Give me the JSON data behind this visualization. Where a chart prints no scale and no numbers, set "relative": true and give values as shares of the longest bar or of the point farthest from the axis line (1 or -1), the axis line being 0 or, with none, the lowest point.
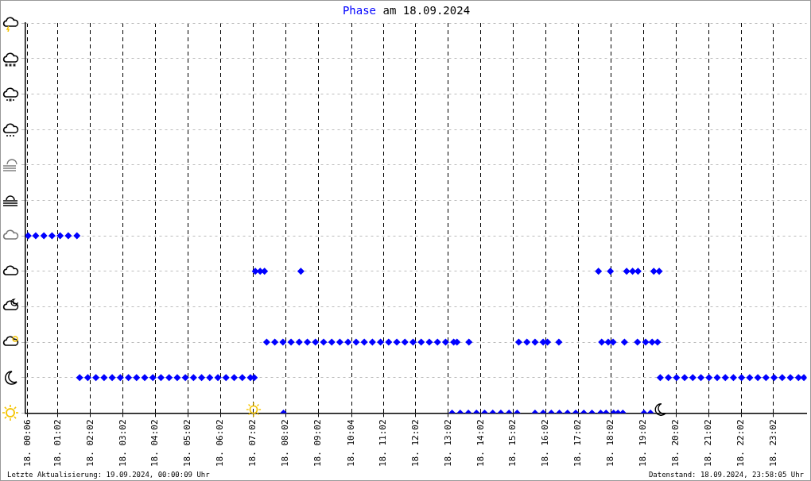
{
  "chart_data": {
    "type": "scatter",
    "title": "Phase am 18.09.2024",
    "relative": true,
    "marker": "diamond",
    "grid": true,
    "xlim": [
      "2024-09-18T00:02",
      "2024-09-19T00:03"
    ],
    "xticks": [
      {
        "value": "2024-09-18T00:06",
        "label": "18. 00:06"
      },
      {
        "value": "2024-09-18T01:02",
        "label": "18. 01:02"
      },
      {
        "value": "2024-09-18T02:02",
        "label": "18. 02:02"
      },
      {
        "value": "2024-09-18T03:02",
        "label": "18. 03:02"
      },
      {
        "value": "2024-09-18T04:02",
        "label": "18. 04:02"
      },
      {
        "value": "2024-09-18T05:02",
        "label": "18. 05:02"
      },
      {
        "value": "2024-09-18T06:02",
        "label": "18. 06:02"
      },
      {
        "value": "2024-09-18T07:02",
        "label": "18. 07:02"
      },
      {
        "value": "2024-09-18T08:02",
        "label": "18. 08:02"
      },
      {
        "value": "2024-09-18T09:02",
        "label": "18. 09:02"
      },
      {
        "value": "2024-09-18T10:04",
        "label": "18. 10:04"
      },
      {
        "value": "2024-09-18T11:02",
        "label": "18. 11:02"
      },
      {
        "value": "2024-09-18T12:02",
        "label": "18. 12:02"
      },
      {
        "value": "2024-09-18T13:02",
        "label": "18. 13:02"
      },
      {
        "value": "2024-09-18T14:02",
        "label": "18. 14:02"
      },
      {
        "value": "2024-09-18T15:02",
        "label": "18. 15:02"
      },
      {
        "value": "2024-09-18T16:02",
        "label": "18. 16:02"
      },
      {
        "value": "2024-09-18T17:02",
        "label": "18. 17:02"
      },
      {
        "value": "2024-09-18T18:02",
        "label": "18. 18:02"
      },
      {
        "value": "2024-09-18T19:02",
        "label": "18. 19:02"
      },
      {
        "value": "2024-09-18T20:02",
        "label": "18. 20:02"
      },
      {
        "value": "2024-09-18T21:02",
        "label": "18. 21:02"
      },
      {
        "value": "2024-09-18T22:02",
        "label": "18. 22:02"
      },
      {
        "value": "2024-09-18T23:02",
        "label": "18. 23:02"
      }
    ],
    "series": [
      {
        "color": "#0000ff",
        "x": [
          "2024-09-18T00:07",
          "2024-09-18T00:21",
          "2024-09-18T00:36",
          "2024-09-18T00:51",
          "2024-09-18T01:06",
          "2024-09-18T01:21",
          "2024-09-18T01:37",
          "2024-09-18T01:42",
          "2024-09-18T01:57",
          "2024-09-18T02:12",
          "2024-09-18T02:27",
          "2024-09-18T02:42",
          "2024-09-18T02:57",
          "2024-09-18T03:12",
          "2024-09-18T03:27",
          "2024-09-18T03:42",
          "2024-09-18T03:57",
          "2024-09-18T04:12",
          "2024-09-18T04:27",
          "2024-09-18T04:42",
          "2024-09-18T04:57",
          "2024-09-18T05:12",
          "2024-09-18T05:27",
          "2024-09-18T05:42",
          "2024-09-18T05:57",
          "2024-09-18T06:12",
          "2024-09-18T06:27",
          "2024-09-18T06:42",
          "2024-09-18T06:57",
          "2024-09-18T07:04",
          "2024-09-18T07:06",
          "2024-09-18T07:15",
          "2024-09-18T07:23",
          "2024-09-18T08:30",
          "2024-09-18T07:58",
          "2024-09-18T07:27",
          "2024-09-18T07:42",
          "2024-09-18T07:57",
          "2024-09-18T08:12",
          "2024-09-18T08:27",
          "2024-09-18T08:42",
          "2024-09-18T08:57",
          "2024-09-18T09:12",
          "2024-09-18T09:27",
          "2024-09-18T09:42",
          "2024-09-18T09:57",
          "2024-09-18T10:12",
          "2024-09-18T10:27",
          "2024-09-18T10:42",
          "2024-09-18T10:57",
          "2024-09-18T11:12",
          "2024-09-18T11:27",
          "2024-09-18T11:42",
          "2024-09-18T11:57",
          "2024-09-18T12:12",
          "2024-09-18T12:27",
          "2024-09-18T12:42",
          "2024-09-18T12:57",
          "2024-09-18T13:12",
          "2024-09-18T13:18",
          "2024-09-18T13:40",
          "2024-09-18T13:09",
          "2024-09-18T13:24",
          "2024-09-18T13:39",
          "2024-09-18T13:54",
          "2024-09-18T14:09",
          "2024-09-18T14:24",
          "2024-09-18T14:39",
          "2024-09-18T14:54",
          "2024-09-18T15:09",
          "2024-09-18T15:12",
          "2024-09-18T15:27",
          "2024-09-18T15:42",
          "2024-09-18T15:57",
          "2024-09-18T16:05",
          "2024-09-18T16:26",
          "2024-09-18T15:42",
          "2024-09-18T15:57",
          "2024-09-18T16:12",
          "2024-09-18T16:27",
          "2024-09-18T16:42",
          "2024-09-18T16:57",
          "2024-09-18T17:12",
          "2024-09-18T17:27",
          "2024-09-18T17:43",
          "2024-09-18T17:53",
          "2024-09-18T18:07",
          "2024-09-18T18:15",
          "2024-09-18T18:24",
          "2024-09-18T19:03",
          "2024-09-18T19:15",
          "2024-09-18T17:39",
          "2024-09-18T18:01",
          "2024-09-18T18:31",
          "2024-09-18T18:42",
          "2024-09-18T18:52",
          "2024-09-18T19:21",
          "2024-09-18T19:31",
          "2024-09-18T17:45",
          "2024-09-18T17:57",
          "2024-09-18T18:06",
          "2024-09-18T18:27",
          "2024-09-18T18:51",
          "2024-09-18T19:06",
          "2024-09-18T19:18",
          "2024-09-18T19:28",
          "2024-09-18T19:33",
          "2024-09-18T19:48",
          "2024-09-18T20:03",
          "2024-09-18T20:18",
          "2024-09-18T20:33",
          "2024-09-18T20:48",
          "2024-09-18T21:03",
          "2024-09-18T21:18",
          "2024-09-18T21:33",
          "2024-09-18T21:48",
          "2024-09-18T22:03",
          "2024-09-18T22:18",
          "2024-09-18T22:33",
          "2024-09-18T22:48",
          "2024-09-18T23:03",
          "2024-09-18T23:18",
          "2024-09-18T23:33",
          "2024-09-18T23:48",
          "2024-09-18T23:58"
        ],
        "values": [
          1,
          1,
          1,
          1,
          1,
          1,
          1,
          0.2,
          0.2,
          0.2,
          0.2,
          0.2,
          0.2,
          0.2,
          0.2,
          0.2,
          0.2,
          0.2,
          0.2,
          0.2,
          0.2,
          0.2,
          0.2,
          0.2,
          0.2,
          0.2,
          0.2,
          0.2,
          0.2,
          0.2,
          0.8,
          0.8,
          0.8,
          0.8,
          0,
          0.4,
          0.4,
          0.4,
          0.4,
          0.4,
          0.4,
          0.4,
          0.4,
          0.4,
          0.4,
          0.4,
          0.4,
          0.4,
          0.4,
          0.4,
          0.4,
          0.4,
          0.4,
          0.4,
          0.4,
          0.4,
          0.4,
          0.4,
          0.4,
          0.4,
          0.4,
          0,
          0,
          0,
          0,
          0,
          0,
          0,
          0,
          0,
          0.4,
          0.4,
          0.4,
          0.4,
          0.4,
          0.4,
          0,
          0,
          0,
          0,
          0,
          0,
          0,
          0,
          0,
          0,
          0,
          0,
          0,
          0,
          0,
          0.8,
          0.8,
          0.8,
          0.8,
          0.8,
          0.8,
          0.8,
          0.4,
          0.4,
          0.4,
          0.4,
          0.4,
          0.4,
          0.4,
          0.4,
          0.2,
          0.2,
          0.2,
          0.2,
          0.2,
          0.2,
          0.2,
          0.2,
          0.2,
          0.2,
          0.2,
          0.2,
          0.2,
          0.2,
          0.2,
          0.2,
          0.2,
          0.2,
          0.2
        ]
      }
    ],
    "annotations": [
      "Letzte Aktualisierung: 19.09.2024, 00:00:09 Uhr",
      "Datenstand: 18.09.2024, 23:58:05 Uhr"
    ]
  }
}
